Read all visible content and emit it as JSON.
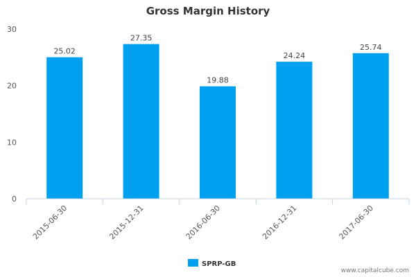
{
  "chart_data": {
    "type": "bar",
    "title": "Gross Margin History",
    "categories": [
      "2015-06-30",
      "2015-12-31",
      "2016-06-30",
      "2016-12-31",
      "2017-06-30"
    ],
    "series": [
      {
        "name": "SPRP-GB",
        "values": [
          25.02,
          27.35,
          19.88,
          24.24,
          25.74
        ],
        "color": "#00a0f0"
      }
    ],
    "data_labels": [
      "25.02",
      "27.35",
      "19.88",
      "24.24",
      "25.74"
    ],
    "ylim": [
      0,
      30
    ],
    "yticks": [
      0,
      10,
      20,
      30
    ],
    "ytick_labels": [
      "0",
      "10",
      "20",
      "30"
    ],
    "grid": false,
    "legend_position": "bottom-center"
  },
  "credit": "www.capitalcube.com",
  "colors": {
    "bar": "#00a0f0",
    "axis": "#c0d0e0",
    "text": "#333333"
  }
}
